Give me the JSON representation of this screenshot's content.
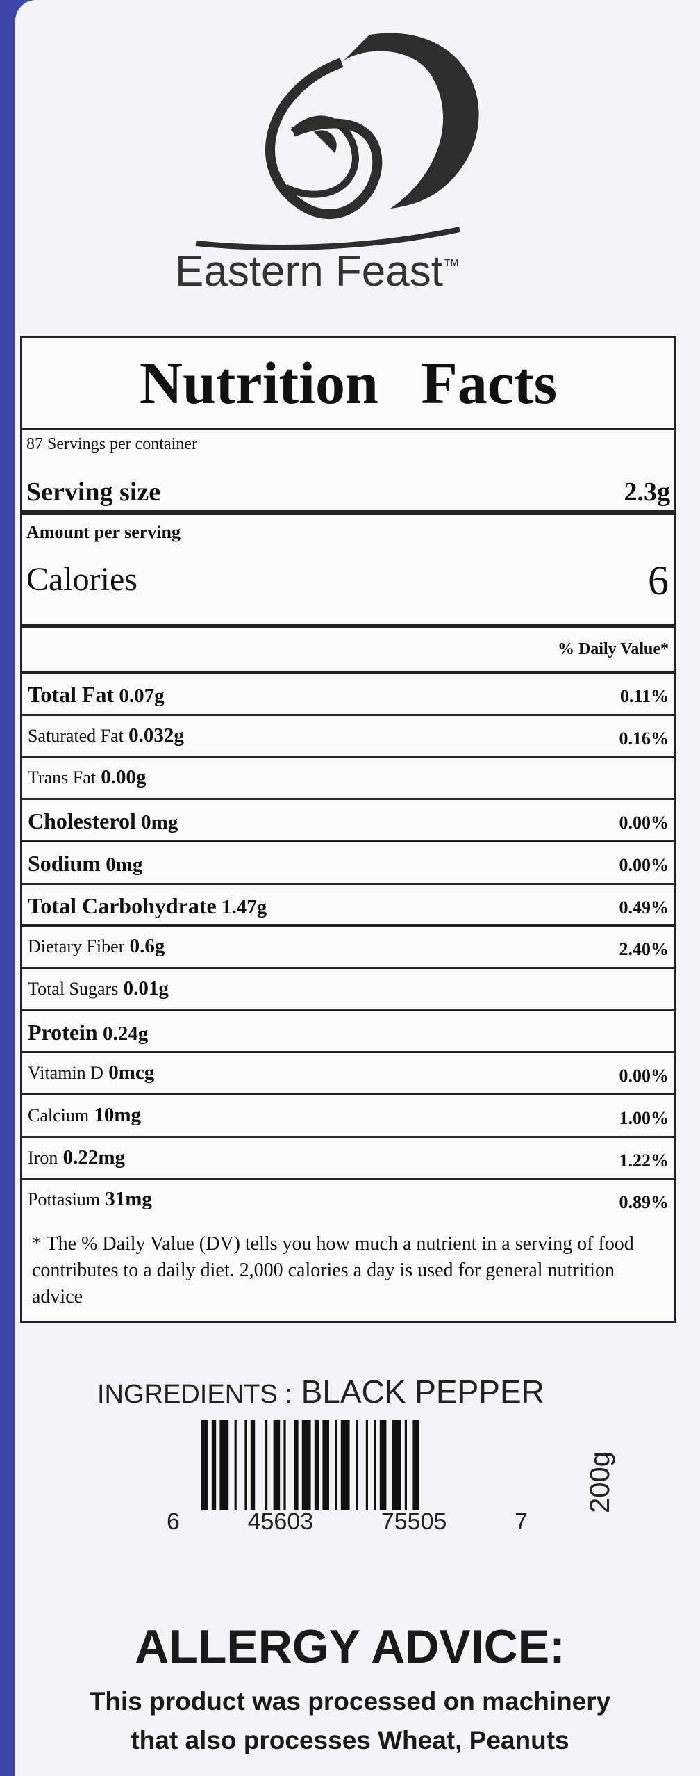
{
  "brand": {
    "name": "Eastern Feast",
    "mark": "™"
  },
  "nutrition": {
    "title": "Nutrition Facts",
    "servings": "87 Servings per container",
    "serving_size": {
      "label": "Serving size",
      "value": "2.3g"
    },
    "amount_per_serving": "Amount per serving",
    "calories": {
      "label": "Calories",
      "value": 6
    },
    "dv_header": "% Daily Value*",
    "rows": [
      {
        "name": "Total Fat",
        "amount": "0.07g",
        "dv": "0.11%",
        "bold": true
      },
      {
        "name": "Saturated Fat",
        "amount": "0.032g",
        "dv": "0.16%",
        "bold": false
      },
      {
        "name": "Trans Fat",
        "amount": "0.00g",
        "bold": false
      },
      {
        "name": "Cholesterol",
        "amount": "0mg",
        "dv": "0.00%",
        "bold": true
      },
      {
        "name": "Sodium",
        "amount": "0mg",
        "dv": "0.00%",
        "bold": true
      },
      {
        "name": "Total Carbohydrate",
        "amount": "1.47g",
        "dv": "0.49%",
        "bold": true
      },
      {
        "name": "Dietary Fiber",
        "amount": "0.6g",
        "dv": "2.40%",
        "bold": false
      },
      {
        "name": "Total Sugars",
        "amount": "0.01g",
        "bold": false
      },
      {
        "name": "Protein",
        "amount": "0.24g",
        "bold": true
      },
      {
        "name": "Vitamin D",
        "amount": "0mcg",
        "dv": "0.00%",
        "bold": false
      },
      {
        "name": "Calcium",
        "amount": "10mg",
        "dv": "1.00%",
        "bold": false
      },
      {
        "name": "Iron",
        "amount": "0.22mg",
        "dv": "1.22%",
        "bold": false
      },
      {
        "name": "Pottasium",
        "amount": "31mg",
        "dv": "0.89%",
        "bold": false
      }
    ],
    "footnote": "* The % Daily Value (DV) tells you how much a nutrient in a serving of food contributes to a daily diet. 2,000 calories a day is used for general nutrition advice"
  },
  "ingredients": {
    "label": "INGREDIENTS :",
    "value": "BLACK PEPPER"
  },
  "barcode": {
    "digits": [
      "6",
      "45603",
      "75505",
      "7"
    ],
    "weight": "200g"
  },
  "allergy": {
    "title": "ALLERGY ADVICE:",
    "lines": [
      "This product was processed on machinery",
      "that also processes Wheat, Peanuts"
    ]
  }
}
